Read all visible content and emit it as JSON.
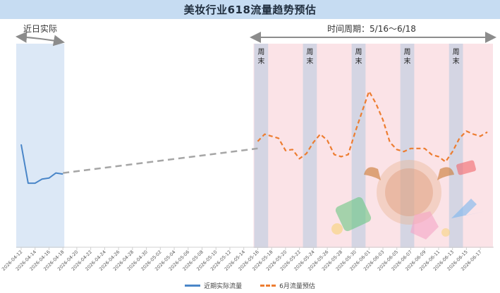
{
  "title": "美妆行业618流量趋势预估",
  "annotations": {
    "recent_label": "近日实际",
    "period_label": "时间周期：5/16～6/18",
    "weekend_label": "周末"
  },
  "colors": {
    "actual": "#4a86c8",
    "forecast": "#ed7d31",
    "bridge": "#a6a6a6",
    "recent_band": "#dce8f6",
    "period_band": "#fbe3e7",
    "weekend_band": "#d4d5e3",
    "title_bg": "#c6dcf2"
  },
  "chart_data": {
    "type": "line",
    "title": "美妆行业618流量趋势预估",
    "grid": false,
    "legend_position": "bottom",
    "x_start": "2026-04-12",
    "x_end": "2026-06-18",
    "tick_labels": [
      "2026-04-12",
      "2026-04-14",
      "2026-04-16",
      "2026-04-18",
      "2026-04-20",
      "2026-04-22",
      "2026-04-24",
      "2026-04-26",
      "2026-04-28",
      "2026-04-30",
      "2026-05-02",
      "2026-05-04",
      "2026-05-06",
      "2026-05-08",
      "2026-05-10",
      "2026-05-12",
      "2026-05-14",
      "2026-05-16",
      "2026-05-18",
      "2026-05-20",
      "2026-05-22",
      "2026-05-24",
      "2026-05-26",
      "2026-05-28",
      "2026-05-30",
      "2026-06-01",
      "2026-06-03",
      "2026-06-05",
      "2026-06-07",
      "2026-06-09",
      "2026-06-11",
      "2026-06-13",
      "2026-06-15",
      "2026-06-17"
    ],
    "ylim": [
      0,
      100
    ],
    "series": [
      {
        "name": "近期实际流量",
        "style": "solid",
        "points": [
          [
            "2026-04-12",
            50
          ],
          [
            "2026-04-13",
            31
          ],
          [
            "2026-04-14",
            31
          ],
          [
            "2026-04-15",
            33
          ],
          [
            "2026-04-16",
            33.5
          ],
          [
            "2026-04-17",
            36
          ],
          [
            "2026-04-18",
            35.5
          ]
        ]
      },
      {
        "name": "",
        "style": "dashed-gray",
        "points": [
          [
            "2026-04-18",
            36
          ],
          [
            "2026-05-16",
            48
          ]
        ]
      },
      {
        "name": "6月流量预估",
        "style": "dashed",
        "points": [
          [
            "2026-05-16",
            51.5
          ],
          [
            "2026-05-17",
            55
          ],
          [
            "2026-05-18",
            54
          ],
          [
            "2026-05-19",
            53
          ],
          [
            "2026-05-20",
            47
          ],
          [
            "2026-05-21",
            47.5
          ],
          [
            "2026-05-22",
            43
          ],
          [
            "2026-05-23",
            45.5
          ],
          [
            "2026-05-24",
            51
          ],
          [
            "2026-05-25",
            55
          ],
          [
            "2026-05-26",
            52
          ],
          [
            "2026-05-27",
            45
          ],
          [
            "2026-05-28",
            44
          ],
          [
            "2026-05-29",
            45
          ],
          [
            "2026-05-30",
            56
          ],
          [
            "2026-05-31",
            66
          ],
          [
            "2026-06-01",
            76
          ],
          [
            "2026-06-02",
            70
          ],
          [
            "2026-06-03",
            62
          ],
          [
            "2026-06-04",
            51
          ],
          [
            "2026-06-05",
            47.5
          ],
          [
            "2026-06-06",
            46.5
          ],
          [
            "2026-06-07",
            48
          ],
          [
            "2026-06-08",
            48
          ],
          [
            "2026-06-09",
            48
          ],
          [
            "2026-06-10",
            45
          ],
          [
            "2026-06-11",
            44
          ],
          [
            "2026-06-12",
            41.5
          ],
          [
            "2026-06-13",
            46.5
          ],
          [
            "2026-06-14",
            53
          ],
          [
            "2026-06-15",
            56.5
          ],
          [
            "2026-06-16",
            55
          ],
          [
            "2026-06-17",
            54
          ],
          [
            "2026-06-18",
            56
          ]
        ]
      }
    ],
    "bands": {
      "recent": [
        "2026-04-12",
        "2026-04-18"
      ],
      "period": [
        "2026-05-16",
        "2026-06-18"
      ],
      "weekends": [
        [
          "2026-05-16",
          "2026-05-17"
        ],
        [
          "2026-05-23",
          "2026-05-24"
        ],
        [
          "2026-05-30",
          "2026-05-31"
        ],
        [
          "2026-06-06",
          "2026-06-07"
        ],
        [
          "2026-06-13",
          "2026-06-14"
        ]
      ]
    }
  },
  "legend": {
    "actual_label": "近期实际流量",
    "forecast_label": "6月流量预估"
  }
}
